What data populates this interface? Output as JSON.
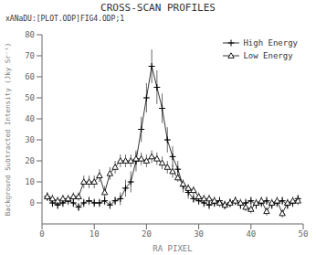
{
  "chart_data": {
    "type": "line",
    "title": "CROSS-SCAN PROFILES",
    "subtitle": "xANaDU:[PLOT.ODP]FIG4.ODP;1",
    "xlabel": "RA PIXEL",
    "ylabel": "Background Subtracted Intensity (Jky Sr⁻¹)",
    "x": [
      1,
      2,
      3,
      4,
      5,
      6,
      7,
      8,
      9,
      10,
      11,
      12,
      13,
      14,
      15,
      16,
      17,
      18,
      19,
      20,
      21,
      22,
      23,
      24,
      25,
      26,
      27,
      28,
      29,
      30,
      31,
      32,
      33,
      34,
      35,
      36,
      37,
      38,
      39,
      40,
      41,
      42,
      43,
      44,
      45,
      46,
      47,
      48,
      49
    ],
    "series": [
      {
        "name": "High Energy",
        "color": "black",
        "marker": "plus",
        "values": [
          3,
          0,
          -1,
          0,
          1,
          0,
          -2,
          0,
          1,
          0,
          0,
          1,
          -1,
          1,
          2,
          7,
          10,
          20,
          35,
          50,
          65,
          55,
          45,
          30,
          22,
          16,
          8,
          5,
          2,
          1,
          0,
          -1,
          0,
          1,
          -1,
          0,
          1,
          -1,
          0,
          1,
          -1,
          0,
          1,
          -1,
          0,
          1,
          -1,
          0,
          2
        ],
        "y_error": [
          2,
          2,
          2,
          2,
          2,
          2,
          2,
          2,
          2,
          2,
          2,
          2,
          2,
          2,
          3,
          4,
          5,
          5,
          6,
          7,
          8,
          8,
          7,
          6,
          5,
          4,
          3,
          3,
          2,
          2,
          2,
          2,
          2,
          2,
          2,
          2,
          2,
          2,
          2,
          2,
          2,
          2,
          2,
          2,
          2,
          2,
          2,
          2,
          2
        ],
        "x_error": [
          0.4,
          0.4,
          0.4,
          0.4,
          0.4,
          0.4,
          0.4,
          0.4,
          0.4,
          0.4,
          0.4,
          0.4,
          0.4,
          0.4,
          0.4,
          0.4,
          0.4,
          0.4,
          0.4,
          0.4,
          0.4,
          0.4,
          0.4,
          0.4,
          0.4,
          0.4,
          0.4,
          0.4,
          0.4,
          0.4,
          0.4,
          0.4,
          0.4,
          0.4,
          0.4,
          0.4,
          0.4,
          0.4,
          0.4,
          0.4,
          0.4,
          0.4,
          0.4,
          0.4,
          0.4,
          0.4,
          0.4,
          0.4,
          0.4
        ]
      },
      {
        "name": "Low Energy",
        "color": "black",
        "marker": "triangle",
        "values": [
          3,
          2,
          1,
          2,
          2,
          3,
          3,
          10,
          10,
          10,
          13,
          5,
          14,
          17,
          20,
          20,
          20,
          21,
          21,
          20,
          22,
          21,
          19,
          17,
          15,
          12,
          9,
          7,
          6,
          3,
          2,
          2,
          1,
          0,
          -1,
          0,
          1,
          0,
          -2,
          -3,
          0,
          1,
          -4,
          0,
          1,
          -5,
          0,
          1,
          1
        ],
        "y_error": [
          2,
          2,
          2,
          2,
          2,
          2,
          2,
          3,
          3,
          3,
          3,
          3,
          3,
          3,
          3,
          3,
          3,
          3,
          3,
          3,
          3,
          3,
          3,
          3,
          3,
          2,
          2,
          2,
          2,
          2,
          2,
          2,
          2,
          2,
          2,
          2,
          2,
          2,
          2,
          2,
          2,
          2,
          2,
          2,
          2,
          2,
          2,
          2,
          2
        ],
        "x_error": [
          0.4,
          0.4,
          0.4,
          0.4,
          0.4,
          0.4,
          0.4,
          0.4,
          0.4,
          0.4,
          0.4,
          0.4,
          0.4,
          0.4,
          0.4,
          0.4,
          0.4,
          0.4,
          0.4,
          0.4,
          0.4,
          0.4,
          0.4,
          0.4,
          0.4,
          0.4,
          0.4,
          0.4,
          0.4,
          0.4,
          0.4,
          0.4,
          0.4,
          0.4,
          0.4,
          0.4,
          0.4,
          0.4,
          0.4,
          0.4,
          0.4,
          0.4,
          0.4,
          0.4,
          0.4,
          0.4,
          0.4,
          0.4,
          0.4
        ]
      }
    ],
    "xlim": [
      0,
      50
    ],
    "ylim": [
      -10,
      80
    ],
    "xticks": [
      0,
      10,
      20,
      30,
      40,
      50
    ],
    "yticks": [
      0,
      10,
      20,
      30,
      40,
      50,
      60,
      70,
      80
    ],
    "grid": false,
    "legend": "upper right"
  }
}
